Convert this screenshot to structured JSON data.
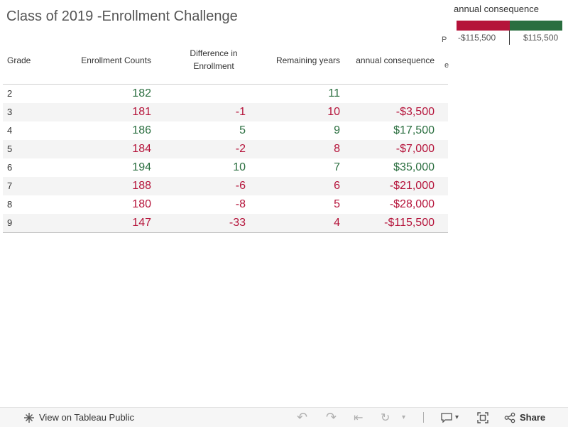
{
  "title": "Class of 2019 -Enrollment Challenge",
  "colors": {
    "negative": "#b5133a",
    "positive": "#2a6e3f",
    "header_text": "#333333"
  },
  "legend": {
    "title": "annual consequence",
    "min_label": "-$115,500",
    "max_label": "$115,500",
    "clipped_text_1": "P",
    "clipped_text_2": "e"
  },
  "table": {
    "headers": {
      "grade": "Grade",
      "count": "Enrollment Counts",
      "diff_line1": "Difference in",
      "diff_line2": "Enrollment",
      "years": "Remaining years",
      "annual": "annual consequence"
    },
    "rows": [
      {
        "grade": "2",
        "count": "182",
        "diff": "",
        "years": "11",
        "annual": "",
        "sign": "pos"
      },
      {
        "grade": "3",
        "count": "181",
        "diff": "-1",
        "years": "10",
        "annual": "-$3,500",
        "sign": "neg"
      },
      {
        "grade": "4",
        "count": "186",
        "diff": "5",
        "years": "9",
        "annual": "$17,500",
        "sign": "pos"
      },
      {
        "grade": "5",
        "count": "184",
        "diff": "-2",
        "years": "8",
        "annual": "-$7,000",
        "sign": "neg"
      },
      {
        "grade": "6",
        "count": "194",
        "diff": "10",
        "years": "7",
        "annual": "$35,000",
        "sign": "pos"
      },
      {
        "grade": "7",
        "count": "188",
        "diff": "-6",
        "years": "6",
        "annual": "-$21,000",
        "sign": "neg"
      },
      {
        "grade": "8",
        "count": "180",
        "diff": "-8",
        "years": "5",
        "annual": "-$28,000",
        "sign": "neg"
      },
      {
        "grade": "9",
        "count": "147",
        "diff": "-33",
        "years": "4",
        "annual": "-$115,500",
        "sign": "neg"
      }
    ]
  },
  "footer": {
    "view_label": "View on Tableau Public",
    "share_label": "Share",
    "icons": [
      "tableau-icon",
      "undo-icon",
      "redo-icon",
      "revert-icon",
      "refresh-icon",
      "chevron-down-icon",
      "comment-icon",
      "fullscreen-icon",
      "share-icon"
    ]
  }
}
